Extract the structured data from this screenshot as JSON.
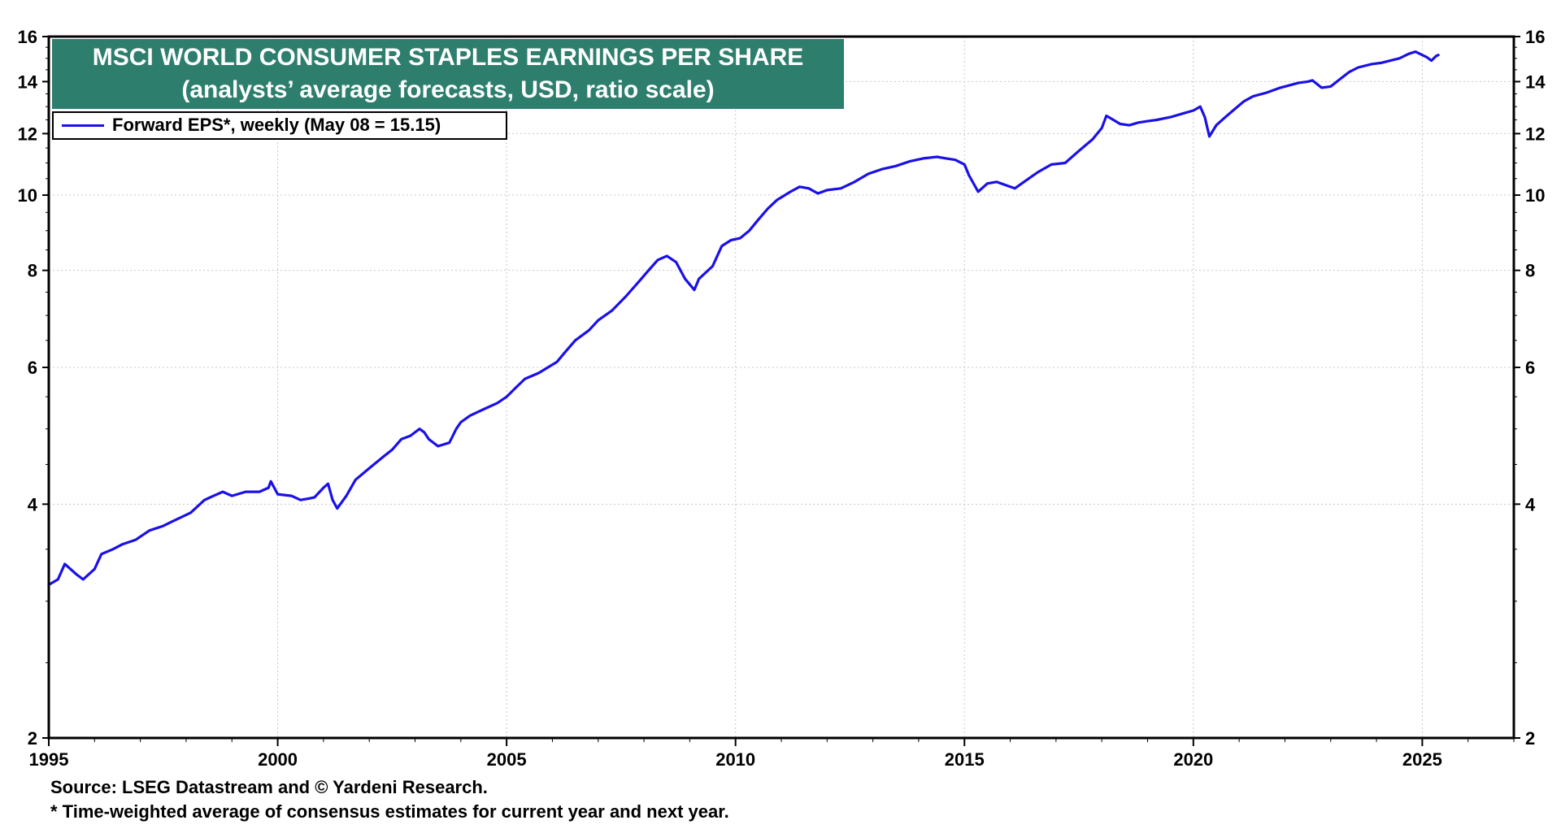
{
  "title_line1": "MSCI WORLD CONSUMER STAPLES EARNINGS PER SHARE",
  "title_line2": "(analysts’ average forecasts, USD, ratio scale)",
  "legend_label": "Forward EPS*, weekly (May 08 = 15.15)",
  "source": "Source: LSEG Datastream and © Yardeni Research.",
  "footnote": "* Time-weighted average of consensus estimates for current year and next year.",
  "colors": {
    "series": "#1a10e8",
    "title_bg": "#2e7e6e",
    "grid": "#c8c8c8"
  },
  "chart_data": {
    "type": "line",
    "title": "MSCI WORLD CONSUMER STAPLES EARNINGS PER SHARE",
    "subtitle": "(analysts’ average forecasts, USD, ratio scale)",
    "scale": "log",
    "xlim": [
      1995,
      2027.0
    ],
    "ylim": [
      2,
      16
    ],
    "x_ticks": [
      1995,
      2000,
      2005,
      2010,
      2015,
      2020,
      2025
    ],
    "y_ticks": [
      2,
      4,
      6,
      8,
      10,
      12,
      14,
      16
    ],
    "grid": true,
    "legend_position": "top-left",
    "series": [
      {
        "name": "Forward EPS*, weekly (May 08 = 15.15)",
        "x": [
          1995.0,
          1995.2,
          1995.3,
          1995.35,
          1995.6,
          1995.75,
          1996.0,
          1996.15,
          1996.4,
          1996.6,
          1996.9,
          1997.2,
          1997.5,
          1997.7,
          1997.9,
          1998.1,
          1998.4,
          1998.6,
          1998.8,
          1999.0,
          1999.3,
          1999.6,
          1999.8,
          1999.85,
          2000.0,
          2000.3,
          2000.5,
          2000.8,
          2001.0,
          2001.1,
          2001.2,
          2001.3,
          2001.5,
          2001.7,
          2002.0,
          2002.3,
          2002.5,
          2002.7,
          2002.9,
          2003.0,
          2003.1,
          2003.2,
          2003.3,
          2003.5,
          2003.75,
          2003.9,
          2004.0,
          2004.2,
          2004.5,
          2004.8,
          2005.0,
          2005.2,
          2005.4,
          2005.7,
          2005.9,
          2006.1,
          2006.3,
          2006.5,
          2006.8,
          2007.0,
          2007.3,
          2007.6,
          2007.9,
          2008.1,
          2008.3,
          2008.5,
          2008.7,
          2008.9,
          2009.1,
          2009.2,
          2009.5,
          2009.7,
          2009.9,
          2010.1,
          2010.3,
          2010.5,
          2010.7,
          2010.9,
          2011.2,
          2011.4,
          2011.6,
          2011.8,
          2012.0,
          2012.3,
          2012.6,
          2012.9,
          2013.2,
          2013.5,
          2013.8,
          2014.1,
          2014.4,
          2014.6,
          2014.8,
          2015.0,
          2015.1,
          2015.3,
          2015.5,
          2015.7,
          2015.9,
          2016.1,
          2016.3,
          2016.6,
          2016.9,
          2017.2,
          2017.5,
          2017.8,
          2018.0,
          2018.1,
          2018.2,
          2018.4,
          2018.6,
          2018.8,
          2019.0,
          2019.2,
          2019.5,
          2019.8,
          2020.0,
          2020.15,
          2020.25,
          2020.35,
          2020.5,
          2020.7,
          2020.9,
          2021.1,
          2021.3,
          2021.6,
          2021.9,
          2022.1,
          2022.3,
          2022.5,
          2022.6,
          2022.8,
          2023.0,
          2023.2,
          2023.4,
          2023.6,
          2023.9,
          2024.1,
          2024.3,
          2024.5,
          2024.7,
          2024.85,
          2025.0,
          2025.1,
          2025.2,
          2025.3,
          2025.35
        ],
        "values": [
          3.15,
          3.2,
          3.3,
          3.35,
          3.25,
          3.2,
          3.3,
          3.45,
          3.5,
          3.55,
          3.6,
          3.7,
          3.75,
          3.8,
          3.85,
          3.9,
          4.05,
          4.1,
          4.15,
          4.1,
          4.15,
          4.15,
          4.2,
          4.28,
          4.12,
          4.1,
          4.05,
          4.08,
          4.2,
          4.25,
          4.05,
          3.95,
          4.1,
          4.3,
          4.45,
          4.6,
          4.7,
          4.85,
          4.9,
          4.95,
          5.0,
          4.95,
          4.85,
          4.75,
          4.8,
          5.0,
          5.1,
          5.2,
          5.3,
          5.4,
          5.5,
          5.65,
          5.8,
          5.9,
          6.0,
          6.1,
          6.3,
          6.5,
          6.7,
          6.9,
          7.1,
          7.4,
          7.75,
          8.0,
          8.25,
          8.35,
          8.2,
          7.8,
          7.55,
          7.8,
          8.1,
          8.6,
          8.75,
          8.8,
          9.0,
          9.3,
          9.6,
          9.85,
          10.1,
          10.25,
          10.2,
          10.05,
          10.15,
          10.2,
          10.4,
          10.65,
          10.8,
          10.9,
          11.05,
          11.15,
          11.2,
          11.15,
          11.1,
          10.95,
          10.6,
          10.1,
          10.35,
          10.4,
          10.3,
          10.2,
          10.4,
          10.7,
          10.95,
          11.0,
          11.4,
          11.8,
          12.2,
          12.65,
          12.55,
          12.35,
          12.3,
          12.4,
          12.45,
          12.5,
          12.6,
          12.75,
          12.85,
          13.0,
          12.6,
          11.9,
          12.3,
          12.6,
          12.9,
          13.2,
          13.4,
          13.55,
          13.75,
          13.85,
          13.95,
          14.0,
          14.05,
          13.75,
          13.8,
          14.1,
          14.4,
          14.6,
          14.75,
          14.8,
          14.9,
          15.0,
          15.2,
          15.3,
          15.15,
          15.05,
          14.9,
          15.1,
          15.15
        ]
      }
    ]
  }
}
